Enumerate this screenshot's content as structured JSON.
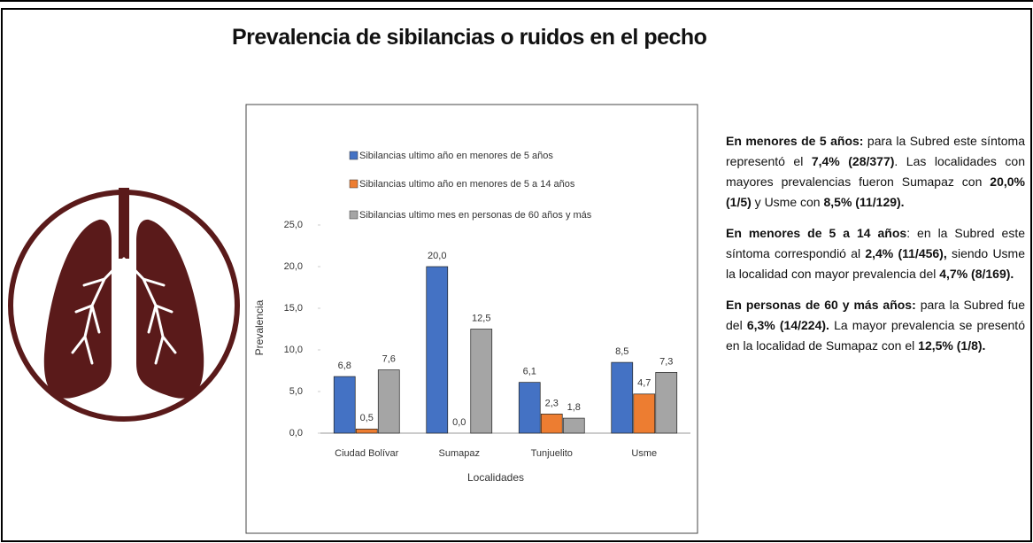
{
  "chart_data": {
    "type": "bar",
    "title": "Prevalencia de sibilancias o ruidos en el pecho",
    "categories": [
      "Ciudad Bolívar",
      "Sumapaz",
      "Tunjuelito",
      "Usme"
    ],
    "series": [
      {
        "name": "Sibilancias ultimo año en  menores de 5 años",
        "color": "#4472c4",
        "values": [
          6.8,
          20.0,
          6.1,
          8.5
        ],
        "value_labels": [
          "6,8",
          "20,0",
          "6,1",
          "8,5"
        ]
      },
      {
        "name": "Sibilancias ultimo año en  menores de 5 a 14 años",
        "color": "#ed7d31",
        "values": [
          0.5,
          0.0,
          2.3,
          4.7
        ],
        "value_labels": [
          "0,5",
          "0,0",
          "2,3",
          "4,7"
        ]
      },
      {
        "name": "Sibilancias ultimo mes en personas de 60 años y más",
        "color": "#a5a5a5",
        "values": [
          7.6,
          12.5,
          1.8,
          7.3
        ],
        "value_labels": [
          "7,6",
          "12,5",
          "1,8",
          "7,3"
        ]
      }
    ],
    "ylim": [
      0,
      25
    ],
    "yticks": [
      {
        "value": 0,
        "label": "0,0"
      },
      {
        "value": 5,
        "label": "5,0"
      },
      {
        "value": 10,
        "label": "10,0"
      },
      {
        "value": 15,
        "label": "15,0"
      },
      {
        "value": 20,
        "label": "20,0"
      },
      {
        "value": 25,
        "label": "25,0"
      }
    ],
    "ylabel": "Prevalencia",
    "xlabel": "Localidades",
    "legend": "top",
    "grid": false
  },
  "paragraphs": [
    {
      "runs": [
        {
          "text": "En menores de 5 años:",
          "bold": true
        },
        {
          "text": " para la Subred este síntoma representó el ",
          "bold": false
        },
        {
          "text": "7,4% (28/377)",
          "bold": true
        },
        {
          "text": ". Las localidades con mayores prevalencias fueron Sumapaz con ",
          "bold": false
        },
        {
          "text": "20,0% (1/5)",
          "bold": true
        },
        {
          "text": " y Usme con ",
          "bold": false
        },
        {
          "text": "8,5% (11/129).",
          "bold": true
        }
      ]
    },
    {
      "runs": [
        {
          "text": "En menores de 5 a 14 años",
          "bold": true
        },
        {
          "text": ": en la Subred este síntoma correspondió al ",
          "bold": false
        },
        {
          "text": "2,4% (11/456),",
          "bold": true
        },
        {
          "text": " siendo Usme la localidad con mayor prevalencia del ",
          "bold": false
        },
        {
          "text": "4,7% (8/169).",
          "bold": true
        }
      ]
    },
    {
      "runs": [
        {
          "text": "En personas de 60 y más años:",
          "bold": true
        },
        {
          "text": " para la Subred fue del ",
          "bold": false
        },
        {
          "text": "6,3% (14/224).",
          "bold": true
        },
        {
          "text": " La mayor prevalencia se presentó en la localidad de Sumapaz con el ",
          "bold": false
        },
        {
          "text": "12,5% (1/8).",
          "bold": true
        }
      ]
    }
  ]
}
